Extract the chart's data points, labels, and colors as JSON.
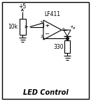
{
  "title": "LED Control",
  "bg_color": "#ffffff",
  "line_color": "#000000",
  "vcc": "+5",
  "r1": "10k",
  "r2": "330",
  "ic": "LF411",
  "pin3": "3",
  "pin2": "2",
  "pin6": "6",
  "figsize": [
    1.3,
    1.45
  ],
  "dpi": 100,
  "xlim": [
    0,
    130
  ],
  "ylim": [
    0,
    145
  ]
}
